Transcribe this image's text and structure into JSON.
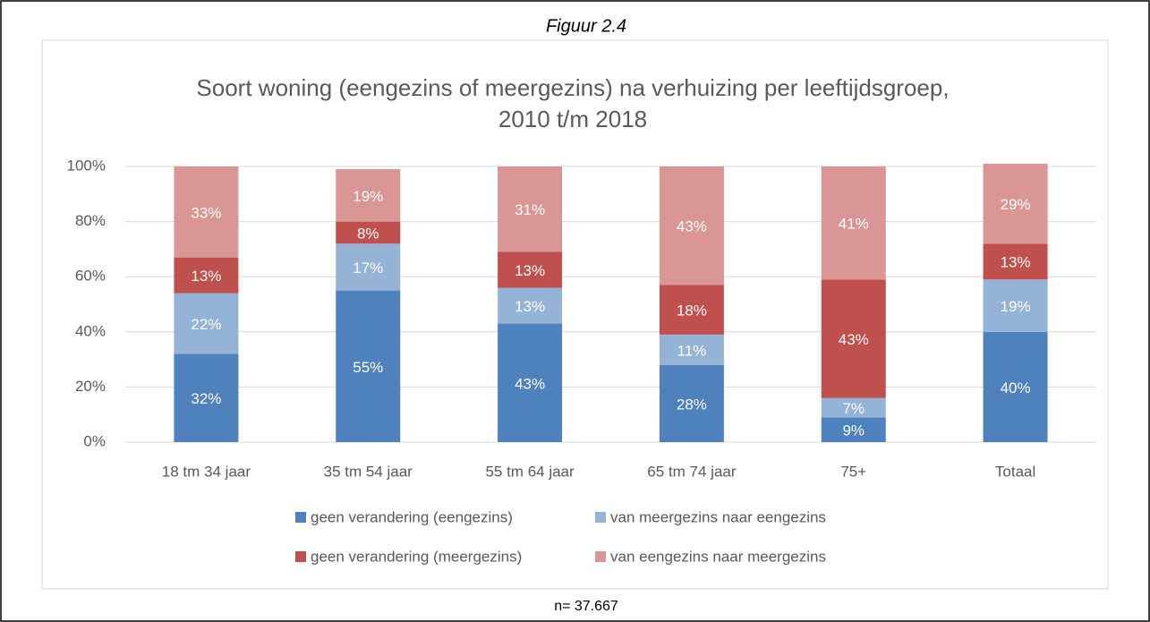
{
  "figure_label": "Figuur 2.4",
  "note": "n= 37.667",
  "chart_data": {
    "type": "stacked_bar",
    "title": [
      "Soort woning (eengezins of meergezins) na verhuizing per leeftijdsgroep,",
      "2010 t/m 2018"
    ],
    "categories": [
      "18 tm 34 jaar",
      "35 tm 54 jaar",
      "55 tm 64 jaar",
      "65 tm 74 jaar",
      "75+",
      "Totaal"
    ],
    "series": [
      {
        "name": "geen verandering (eengezins)",
        "color": "#4f81bd",
        "values": [
          32,
          55,
          43,
          28,
          9,
          40
        ],
        "value_labels": [
          "32%",
          "55%",
          "43%",
          "28%",
          "9%",
          "40%"
        ]
      },
      {
        "name": "van meergezins naar eengezins",
        "color": "#95b3d7",
        "values": [
          22,
          17,
          13,
          11,
          7,
          19
        ],
        "value_labels": [
          "22%",
          "17%",
          "13%",
          "11%",
          "7%",
          "19%"
        ]
      },
      {
        "name": "geen verandering (meergezins)",
        "color": "#c0504d",
        "values": [
          13,
          8,
          13,
          18,
          43,
          13
        ],
        "value_labels": [
          "13%",
          "8%",
          "13%",
          "18%",
          "43%",
          "13%"
        ]
      },
      {
        "name": "van eengezins naar meergezins",
        "color": "#d99694",
        "values": [
          33,
          19,
          31,
          43,
          41,
          29
        ],
        "value_labels": [
          "33%",
          "19%",
          "31%",
          "43%",
          "41%",
          "29%"
        ]
      }
    ],
    "ylim": [
      0,
      100
    ],
    "yticks": [
      {
        "value": 0,
        "label": "0%"
      },
      {
        "value": 20,
        "label": "20%"
      },
      {
        "value": 40,
        "label": "40%"
      },
      {
        "value": 60,
        "label": "60%"
      },
      {
        "value": 80,
        "label": "80%"
      },
      {
        "value": 100,
        "label": "100%"
      }
    ],
    "grid": true,
    "legend": "bottom"
  }
}
